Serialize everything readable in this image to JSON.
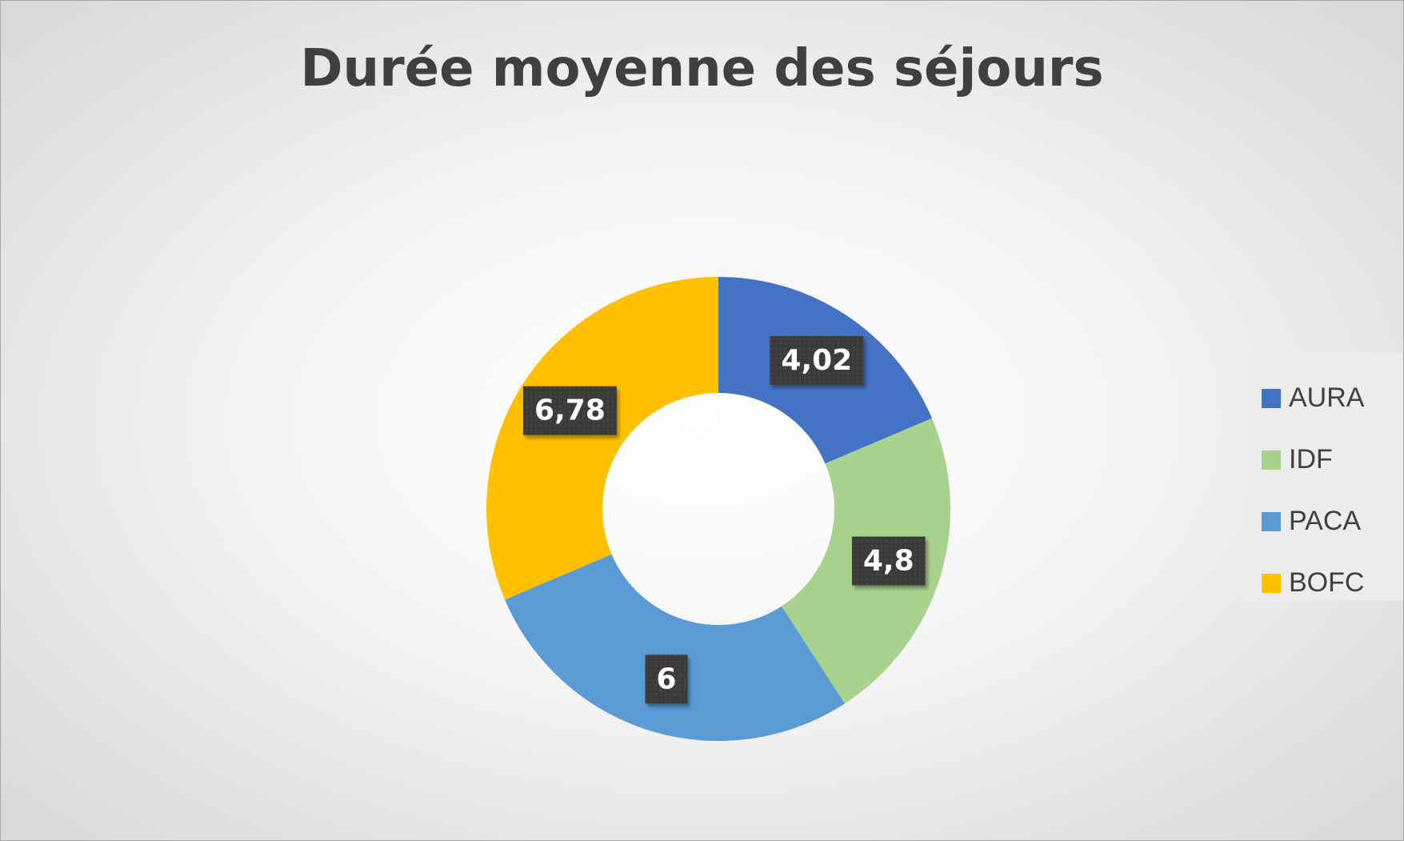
{
  "chart_data": {
    "type": "pie",
    "subtype": "doughnut",
    "title": "Durée moyenne des séjours",
    "categories": [
      "AURA",
      "IDF",
      "PACA",
      "BOFC"
    ],
    "values": [
      4.02,
      4.8,
      6,
      6.78
    ],
    "data_labels": [
      "4,02",
      "4,8",
      "6",
      "6,78"
    ],
    "colors": [
      "#4472c4",
      "#a9d18e",
      "#5b9bd5",
      "#ffc000"
    ],
    "legend": {
      "position": "right",
      "items": [
        "AURA",
        "IDF",
        "PACA",
        "BOFC"
      ]
    },
    "data_label_style": {
      "background": "#3a3a3a",
      "color": "#ffffff"
    }
  }
}
